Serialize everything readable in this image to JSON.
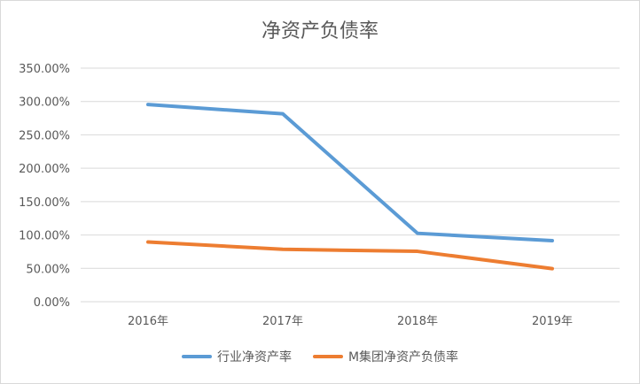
{
  "chart_data": {
    "type": "line",
    "title": "净资产负债率",
    "categories": [
      "2016年",
      "2017年",
      "2018年",
      "2019年"
    ],
    "yticks": [
      "0.00%",
      "50.00%",
      "100.00%",
      "150.00%",
      "200.00%",
      "250.00%",
      "300.00%",
      "350.00%"
    ],
    "ylim": [
      0,
      350
    ],
    "grid": true,
    "legend_position": "bottom",
    "series": [
      {
        "name": "行业净资产率",
        "color": "#5b9bd5",
        "values": [
          295.5,
          281.5,
          102.5,
          91.5
        ]
      },
      {
        "name": "M集团净资产负债率",
        "color": "#ed7d31",
        "values": [
          89.5,
          78.5,
          75.5,
          49.5
        ]
      }
    ]
  }
}
